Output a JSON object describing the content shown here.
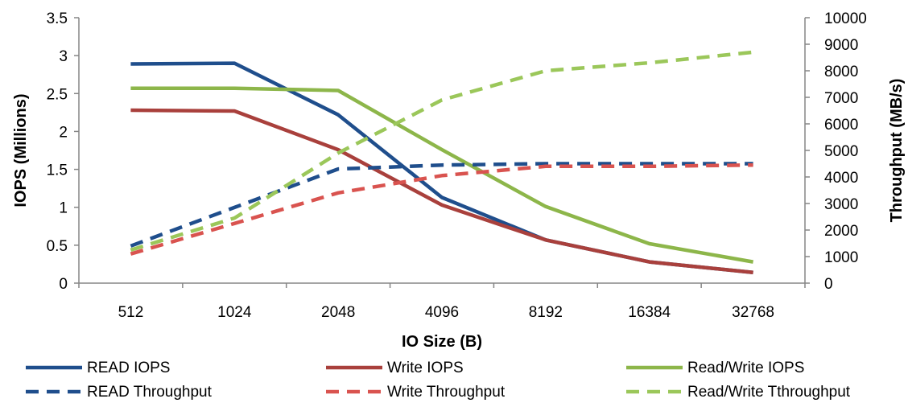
{
  "chart_data": {
    "type": "line",
    "title": "",
    "xlabel": "IO Size (B)",
    "ylabel": "IOPS (Millions)",
    "y2label": "Throughput  (MB/s)",
    "categories": [
      "512",
      "1024",
      "2048",
      "4096",
      "8192",
      "16384",
      "32768"
    ],
    "ylim": [
      0,
      3.5
    ],
    "y2lim": [
      0,
      10000
    ],
    "yticks": [
      "0",
      "0.5",
      "1",
      "1.5",
      "2",
      "2.5",
      "3",
      "3.5"
    ],
    "y2ticks": [
      "0",
      "1000",
      "2000",
      "3000",
      "4000",
      "5000",
      "6000",
      "7000",
      "8000",
      "9000",
      "10000"
    ],
    "grid": false,
    "legend_position": "bottom",
    "series": [
      {
        "name": "READ IOPS",
        "axis": "left",
        "style": "solid",
        "color": "#1f4e8c",
        "values": [
          2.89,
          2.9,
          2.22,
          1.13,
          0.57,
          0.28,
          0.14
        ]
      },
      {
        "name": "Write IOPS",
        "axis": "left",
        "style": "solid",
        "color": "#a9403c",
        "values": [
          2.28,
          2.27,
          1.76,
          1.03,
          0.57,
          0.28,
          0.14
        ]
      },
      {
        "name": "Read/Write IOPS",
        "axis": "left",
        "style": "solid",
        "color": "#8db64a",
        "values": [
          2.57,
          2.57,
          2.54,
          1.76,
          1.01,
          0.52,
          0.28
        ]
      },
      {
        "name": "READ Throughput",
        "axis": "right",
        "style": "dashed",
        "color": "#1f4e8c",
        "values": [
          1400,
          2850,
          4300,
          4450,
          4500,
          4500,
          4500
        ]
      },
      {
        "name": "Write Throughput",
        "axis": "right",
        "style": "dashed",
        "color": "#d9534f",
        "values": [
          1100,
          2250,
          3400,
          4050,
          4400,
          4400,
          4450
        ]
      },
      {
        "name": "Read/Write Tthroughput",
        "axis": "right",
        "style": "dashed",
        "color": "#9bc75a",
        "values": [
          1250,
          2450,
          4900,
          6900,
          8000,
          8300,
          8700
        ]
      }
    ]
  }
}
